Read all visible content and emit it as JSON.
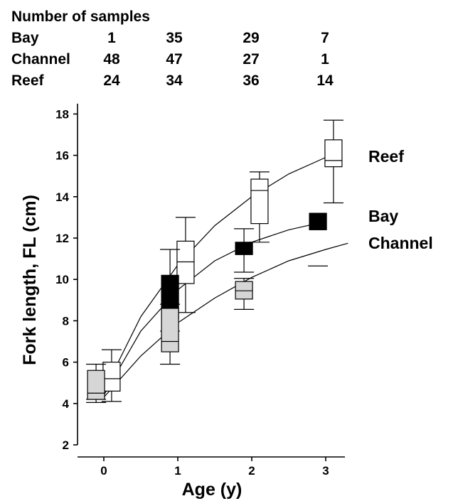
{
  "sample_table": {
    "title": "Number of samples",
    "rows": [
      {
        "label": "Bay",
        "counts": [
          "1",
          "35",
          "29",
          "7"
        ]
      },
      {
        "label": "Channel",
        "counts": [
          "48",
          "47",
          "27",
          "1"
        ]
      },
      {
        "label": "Reef",
        "counts": [
          "24",
          "34",
          "36",
          "14"
        ]
      }
    ]
  },
  "chart_data": {
    "type": "box",
    "xlabel": "Age (y)",
    "ylabel": "Fork length, FL (cm)",
    "xlim": [
      -0.4,
      3.4
    ],
    "ylim": [
      2,
      18.5
    ],
    "xticks": [
      0,
      1,
      2,
      3
    ],
    "yticks": [
      2,
      4,
      6,
      8,
      10,
      12,
      14,
      16,
      18
    ],
    "grid": false,
    "legend": "none",
    "series": [
      {
        "name": "Reef",
        "fill": "#ffffff",
        "boxes": [
          {
            "age": 0,
            "whisker_low": 4.1,
            "q1": 4.6,
            "median": 5.2,
            "q3": 6.0,
            "whisker_high": 6.6
          },
          {
            "age": 1,
            "whisker_low": 8.4,
            "q1": 9.8,
            "median": 10.85,
            "q3": 11.85,
            "whisker_high": 13.0
          },
          {
            "age": 2,
            "whisker_low": 11.8,
            "q1": 12.7,
            "median": 14.3,
            "q3": 14.85,
            "whisker_high": 15.2
          },
          {
            "age": 3,
            "whisker_low": 13.7,
            "q1": 15.45,
            "median": 15.75,
            "q3": 16.75,
            "whisker_high": 17.7
          }
        ],
        "curve": [
          [
            0,
            4.6
          ],
          [
            0.5,
            8.2
          ],
          [
            1,
            10.7
          ],
          [
            1.5,
            12.6
          ],
          [
            2,
            14.0
          ],
          [
            2.5,
            15.1
          ],
          [
            3,
            15.9
          ]
        ]
      },
      {
        "name": "Bay",
        "fill": "#000000",
        "boxes": [
          {
            "age": 0,
            "whisker_low": null,
            "q1": null,
            "median": 4.2,
            "q3": null,
            "whisker_high": null
          },
          {
            "age": 1,
            "whisker_low": 7.5,
            "q1": 8.1,
            "median": 9.5,
            "q3": 10.2,
            "whisker_high": 11.45
          },
          {
            "age": 2,
            "whisker_low": 10.35,
            "q1": 11.2,
            "median": 11.5,
            "q3": 11.8,
            "whisker_high": 12.45
          },
          {
            "age": 3,
            "whisker_low": null,
            "q1": 12.4,
            "median": 12.7,
            "q3": 13.2,
            "whisker_high": null
          }
        ],
        "curve": [
          [
            0,
            4.4
          ],
          [
            0.5,
            7.5
          ],
          [
            1,
            9.5
          ],
          [
            1.5,
            10.9
          ],
          [
            2,
            11.8
          ],
          [
            2.5,
            12.4
          ],
          [
            3,
            12.8
          ]
        ]
      },
      {
        "name": "Channel",
        "fill": "#d6d6d6",
        "boxes": [
          {
            "age": 0,
            "whisker_low": 4.05,
            "q1": 4.2,
            "median": 4.5,
            "q3": 5.6,
            "whisker_high": 5.9
          },
          {
            "age": 1,
            "whisker_low": 5.9,
            "q1": 6.5,
            "median": 7.0,
            "q3": 8.6,
            "whisker_high": 8.8
          },
          {
            "age": 2,
            "whisker_low": 8.55,
            "q1": 9.05,
            "median": 9.45,
            "q3": 9.9,
            "whisker_high": 10.05
          },
          {
            "age": 3,
            "whisker_low": null,
            "q1": null,
            "median": 10.65,
            "q3": null,
            "whisker_high": null
          }
        ],
        "curve": [
          [
            0,
            4.3
          ],
          [
            0.5,
            6.3
          ],
          [
            1,
            7.9
          ],
          [
            1.5,
            9.1
          ],
          [
            2,
            10.1
          ],
          [
            2.5,
            10.9
          ],
          [
            3,
            11.45
          ],
          [
            3.3,
            11.75
          ]
        ]
      }
    ]
  }
}
